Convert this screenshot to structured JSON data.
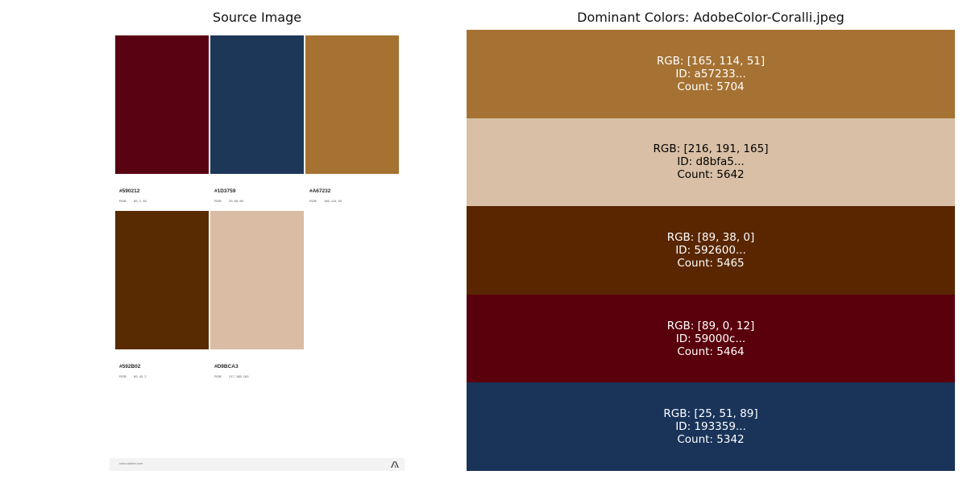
{
  "left_panel": {
    "title": "Source Image",
    "swatches": [
      {
        "hex": "#590212",
        "rgb_label": "RGB",
        "rgb_value": "89, 2, 18",
        "color": "#590212"
      },
      {
        "hex": "#1D3759",
        "rgb_label": "RGB",
        "rgb_value": "29, 55, 89",
        "color": "#1D3759"
      },
      {
        "hex": "#A67232",
        "rgb_label": "RGB",
        "rgb_value": "166, 114, 50",
        "color": "#A67232"
      },
      {
        "hex": "#592B02",
        "rgb_label": "RGB",
        "rgb_value": "89, 43, 2",
        "color": "#592B02"
      },
      {
        "hex": "#D9BCA3",
        "rgb_label": "RGB",
        "rgb_value": "217, 188, 163",
        "color": "#D9BCA3"
      }
    ],
    "footer_url": "color.adobe.com",
    "footer_icon": "adobe-logo-icon"
  },
  "right_panel": {
    "title": "Dominant Colors: AdobeColor-Coralli.jpeg",
    "colors": [
      {
        "rgb": "RGB: [165, 114, 51]",
        "id": "ID: a57233...",
        "count": "Count: 5704",
        "bg": "#a57233",
        "text_color": "#ffffff"
      },
      {
        "rgb": "RGB: [216, 191, 165]",
        "id": "ID: d8bfa5...",
        "count": "Count: 5642",
        "bg": "#d8bfa5",
        "text_color": "#000000"
      },
      {
        "rgb": "RGB: [89, 38, 0]",
        "id": "ID: 592600...",
        "count": "Count: 5465",
        "bg": "#592600",
        "text_color": "#ffffff"
      },
      {
        "rgb": "RGB: [89, 0, 12]",
        "id": "ID: 59000c...",
        "count": "Count: 5464",
        "bg": "#59000c",
        "text_color": "#ffffff"
      },
      {
        "rgb": "RGB: [25, 51, 89]",
        "id": "ID: 193359...",
        "count": "Count: 5342",
        "bg": "#193359",
        "text_color": "#ffffff"
      }
    ]
  }
}
